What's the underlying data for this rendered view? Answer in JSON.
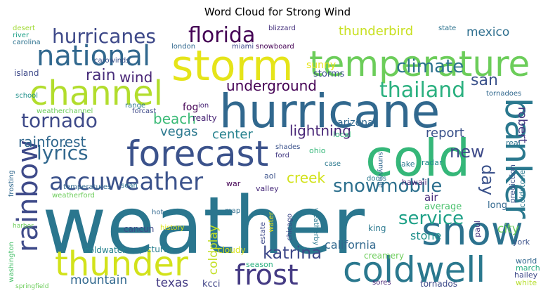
{
  "title": "Word Cloud for Strong Wind",
  "words": [
    {
      "text": "weather",
      "color": "#2a768e"
    },
    {
      "text": "hurricane",
      "color": "#31688e"
    },
    {
      "text": "storm",
      "color": "#e5e419"
    },
    {
      "text": "cold",
      "color": "#35b779"
    },
    {
      "text": "temperature",
      "color": "#6ccd5a"
    },
    {
      "text": "forecast",
      "color": "#3b528b"
    },
    {
      "text": "channel",
      "color": "#b2dd2d"
    },
    {
      "text": "national",
      "color": "#31688e"
    },
    {
      "text": "snow",
      "color": "#2c728e"
    },
    {
      "text": "thunder",
      "color": "#d2e21b"
    },
    {
      "text": "coldwell",
      "color": "#2a788e"
    },
    {
      "text": "banker",
      "color": "#2a788e"
    },
    {
      "text": "rainbow",
      "color": "#3e4a89"
    },
    {
      "text": "accuweather",
      "color": "#3b528b"
    },
    {
      "text": "frost",
      "color": "#443a83"
    },
    {
      "text": "hurricanes",
      "color": "#3e4989"
    },
    {
      "text": "florida",
      "color": "#440154"
    },
    {
      "text": "thailand",
      "color": "#2ab07f"
    },
    {
      "text": "tornado",
      "color": "#3e4a89"
    },
    {
      "text": "climate",
      "color": "#2c728e"
    },
    {
      "text": "service",
      "color": "#1fa188"
    },
    {
      "text": "lyrics",
      "color": "#31688e"
    },
    {
      "text": "rainforest",
      "color": "#31688e"
    },
    {
      "text": "katrina",
      "color": "#3e4989"
    },
    {
      "text": "snowmobile",
      "color": "#2d708e"
    },
    {
      "text": "rain",
      "color": "#472d7b"
    },
    {
      "text": "wind",
      "color": "#482475"
    },
    {
      "text": "underground",
      "color": "#440154"
    },
    {
      "text": "thunderbird",
      "color": "#c8e020"
    },
    {
      "text": "mexico",
      "color": "#2e6f8e"
    },
    {
      "text": "san",
      "color": "#3b528b"
    },
    {
      "text": "lightning",
      "color": "#482677"
    },
    {
      "text": "beach",
      "color": "#3aba76"
    },
    {
      "text": "center",
      "color": "#26828e"
    },
    {
      "text": "vegas",
      "color": "#2a788e"
    },
    {
      "text": "creek",
      "color": "#d2e21b"
    },
    {
      "text": "new",
      "color": "#3e4a89"
    },
    {
      "text": "day",
      "color": "#3b528b"
    },
    {
      "text": "report",
      "color": "#3b528b"
    },
    {
      "text": "robert",
      "color": "#453781"
    },
    {
      "text": "coldplay",
      "color": "#c2df23"
    },
    {
      "text": "mountain",
      "color": "#31688e"
    },
    {
      "text": "texas",
      "color": "#443b84"
    },
    {
      "text": "california",
      "color": "#31688e"
    },
    {
      "text": "city",
      "color": "#6ccd5a"
    },
    {
      "text": "sunny",
      "color": "#e7e419"
    },
    {
      "text": "lake",
      "color": "#2a788e"
    },
    {
      "text": "radar",
      "color": "#228c8d"
    },
    {
      "text": "fog",
      "color": "#440154"
    },
    {
      "text": "realty",
      "color": "#482475"
    },
    {
      "text": "storms",
      "color": "#3b528b"
    },
    {
      "text": "arizona",
      "color": "#31688e"
    },
    {
      "text": "air",
      "color": "#472a7a"
    },
    {
      "text": "long",
      "color": "#31688e"
    },
    {
      "text": "average",
      "color": "#4ac16d"
    },
    {
      "text": "stone",
      "color": "#21918c"
    },
    {
      "text": "king",
      "color": "#2a788e"
    },
    {
      "text": "cancun",
      "color": "#3e4989"
    },
    {
      "text": "pictures",
      "color": "#277f8e"
    },
    {
      "text": "coldwater",
      "color": "#26828e"
    },
    {
      "text": "cloudy",
      "color": "#d8e219"
    },
    {
      "text": "season",
      "color": "#2ab07f"
    },
    {
      "text": "kcci",
      "color": "#414487"
    },
    {
      "text": "world",
      "color": "#31688e"
    },
    {
      "text": "march",
      "color": "#27ad81"
    },
    {
      "text": "hailey",
      "color": "#3e4989"
    },
    {
      "text": "white",
      "color": "#b5de2b"
    },
    {
      "text": "york",
      "color": "#3b528b"
    },
    {
      "text": "paul",
      "color": "#46327e"
    },
    {
      "text": "prediction",
      "color": "#3b528b"
    },
    {
      "text": "coldstone",
      "color": "#2a788e"
    },
    {
      "text": "hawaii",
      "color": "#482475"
    },
    {
      "text": "real",
      "color": "#2c728e"
    },
    {
      "text": "tornadoes",
      "color": "#31688e"
    },
    {
      "text": "weatherchannel",
      "color": "#6ccd5a"
    },
    {
      "text": "temperatures",
      "color": "#31688e"
    },
    {
      "text": "weatherford",
      "color": "#6ccd5a"
    },
    {
      "text": "sean",
      "color": "#2c728e"
    },
    {
      "text": "hot",
      "color": "#31688e"
    },
    {
      "text": "history",
      "color": "#dde318"
    },
    {
      "text": "map",
      "color": "#2e6e8e"
    },
    {
      "text": "valley",
      "color": "#472a7a"
    },
    {
      "text": "war",
      "color": "#440154"
    },
    {
      "text": "aol",
      "color": "#3b528b"
    },
    {
      "text": "ohio",
      "color": "#35b779"
    },
    {
      "text": "case",
      "color": "#2a788e"
    },
    {
      "text": "doors",
      "color": "#2a788e"
    },
    {
      "text": "shades",
      "color": "#3b528b"
    },
    {
      "text": "ford",
      "color": "#443a83"
    },
    {
      "text": "chicago",
      "color": "#3e4a89"
    },
    {
      "text": "weatherby",
      "color": "#2a788e"
    },
    {
      "text": "estate",
      "color": "#3e4989"
    },
    {
      "text": "water",
      "color": "#e5e419"
    },
    {
      "text": "creamery",
      "color": "#6ccd5a"
    },
    {
      "text": "sores",
      "color": "#482475"
    },
    {
      "text": "tornados",
      "color": "#3e4a89"
    },
    {
      "text": "washington",
      "color": "#4ac16d"
    },
    {
      "text": "island",
      "color": "#3e4989"
    },
    {
      "text": "school",
      "color": "#21918c"
    },
    {
      "text": "carolina",
      "color": "#2c728e"
    },
    {
      "text": "river",
      "color": "#1fa188"
    },
    {
      "text": "desert",
      "color": "#a2da37"
    },
    {
      "text": "carowinds",
      "color": "#3b528b"
    },
    {
      "text": "london",
      "color": "#31688e"
    },
    {
      "text": "miami",
      "color": "#3e4989"
    },
    {
      "text": "snowboard",
      "color": "#440154"
    },
    {
      "text": "blizzard",
      "color": "#46327e"
    },
    {
      "text": "state",
      "color": "#2c728e"
    },
    {
      "text": "forcast",
      "color": "#3e4989"
    },
    {
      "text": "range",
      "color": "#2a788e"
    },
    {
      "text": "ion",
      "color": "#482475"
    },
    {
      "text": "local",
      "color": "#35b779"
    },
    {
      "text": "sunnyvale",
      "color": "#31688e"
    },
    {
      "text": "frosting",
      "color": "#31688e"
    },
    {
      "text": "harbor",
      "color": "#6ccd5a"
    },
    {
      "text": "springfield",
      "color": "#6ccd5a"
    }
  ]
}
